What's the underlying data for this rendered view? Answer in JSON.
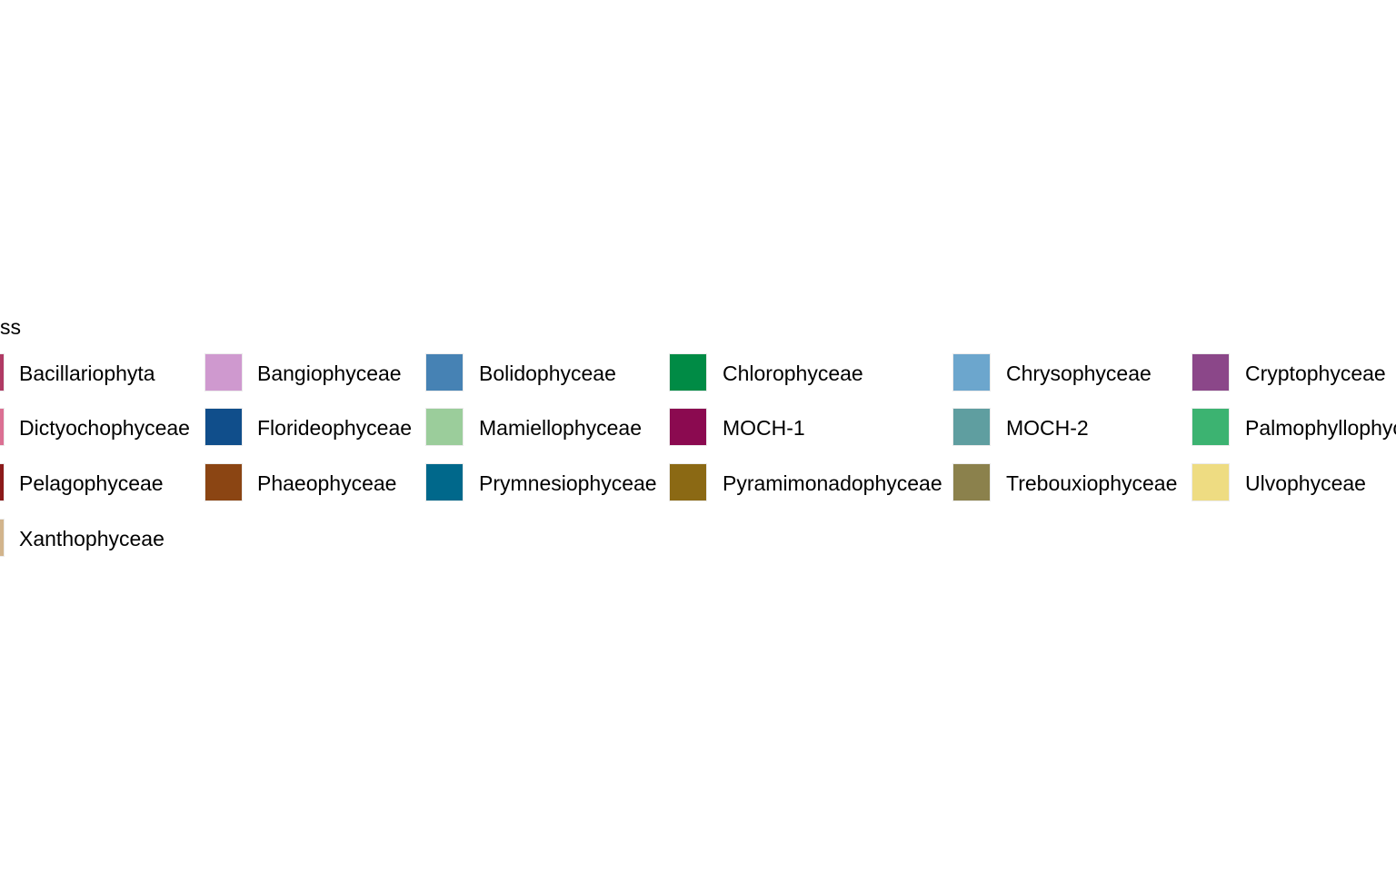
{
  "chart_data": {
    "type": "legend",
    "legend": {
      "title": "ss",
      "placement": "center",
      "entries": [
        {
          "label": "Bacillariophyta",
          "color": "#b03a64"
        },
        {
          "label": "Bangiophyceae",
          "color": "#cf99cf"
        },
        {
          "label": "Bolidophyceae",
          "color": "#4682b4"
        },
        {
          "label": "Chlorophyceae",
          "color": "#008b45"
        },
        {
          "label": "Chrysophyceae",
          "color": "#6ca6cd"
        },
        {
          "label": "Cryptophyceae",
          "color": "#8b4789"
        },
        {
          "label": "Dictyochophyceae",
          "color": "#db7093"
        },
        {
          "label": "Florideophyceae",
          "color": "#104e8b"
        },
        {
          "label": "Mamiellophyceae",
          "color": "#9bcd9b"
        },
        {
          "label": "MOCH-1",
          "color": "#8b0a50"
        },
        {
          "label": "MOCH-2",
          "color": "#5f9ea0"
        },
        {
          "label": "Palmophyllophyc",
          "color": "#3cb371"
        },
        {
          "label": "Pelagophyceae",
          "color": "#8b1a1a"
        },
        {
          "label": "Phaeophyceae",
          "color": "#8b4513"
        },
        {
          "label": "Prymnesiophyceae",
          "color": "#00688b"
        },
        {
          "label": "Pyramimonadophyceae",
          "color": "#8b6914"
        },
        {
          "label": "Trebouxiophyceae",
          "color": "#8b814c"
        },
        {
          "label": "Ulvophyceae",
          "color": "#eedc82"
        },
        {
          "label": "Xanthophyceae",
          "color": "#d2b48c"
        }
      ]
    }
  }
}
